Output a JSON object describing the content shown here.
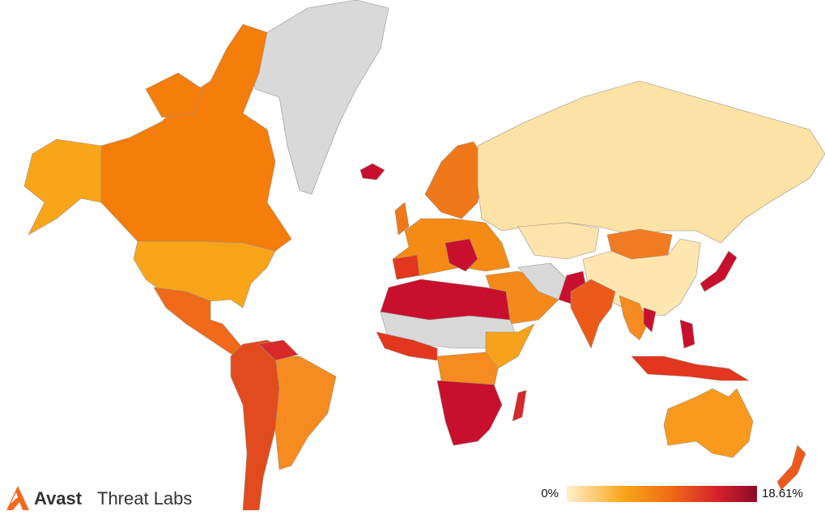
{
  "brand": {
    "name": "Avast",
    "product": "Threat Labs"
  },
  "legend": {
    "min_label": "0%",
    "max_label": "18.61%"
  }
}
